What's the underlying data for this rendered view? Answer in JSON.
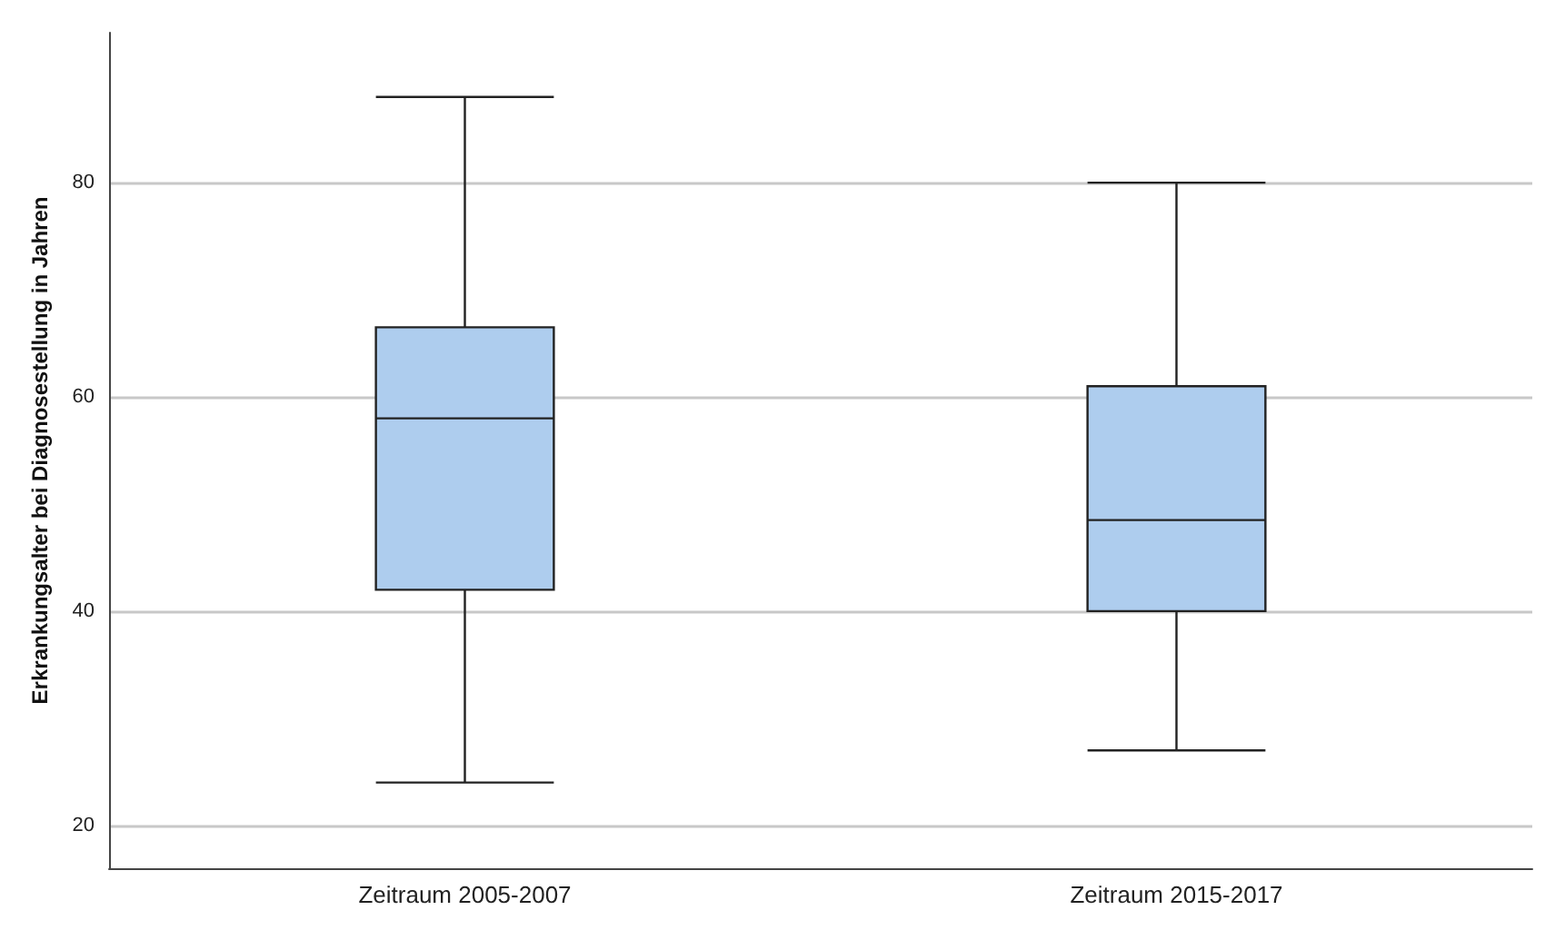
{
  "chart_data": {
    "type": "box",
    "ylabel": "Erkrankungsalter bei Diagnosestellung in Jahren",
    "categories": [
      "Zeitraum 2005-2007",
      "Zeitraum 2015-2017"
    ],
    "boxes": [
      {
        "low": 24,
        "q1": 42,
        "median": 58,
        "q3": 66.5,
        "high": 88
      },
      {
        "low": 27,
        "q1": 40,
        "median": 48.5,
        "q3": 61,
        "high": 80
      }
    ],
    "color": "#aecdee",
    "ylim": [
      16,
      94
    ],
    "yticks": [
      20,
      40,
      60,
      80
    ],
    "grid": "y"
  }
}
